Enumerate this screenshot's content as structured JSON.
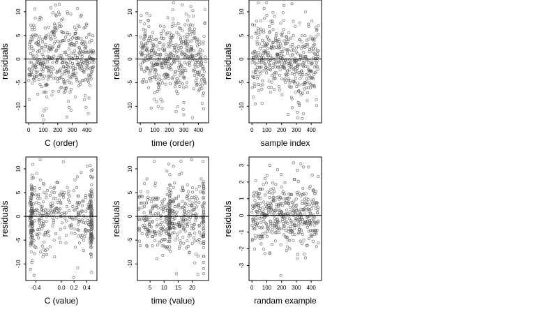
{
  "figure": {
    "background": "#ffffff",
    "point_color": "#555555",
    "axis_color": "#000000"
  },
  "chart_data": [
    {
      "type": "scatter",
      "grid": false,
      "hline": 0,
      "xlabel": "C (order)",
      "ylabel": "residuals",
      "xlim": [
        -20,
        470
      ],
      "ylim": [
        -13.5,
        12.5
      ],
      "xticks": [
        0,
        100,
        200,
        300,
        400
      ],
      "xtick_labels": [
        "0",
        "100",
        "200",
        "300",
        "400"
      ],
      "yticks": [
        -10,
        -5,
        0,
        5,
        10
      ],
      "ytick_labels": [
        "-10",
        "-5",
        "0",
        "5",
        "10"
      ],
      "n_points": 450,
      "x_pattern": "index",
      "y_pattern": "wave",
      "y_sd": 4,
      "seed": 11,
      "points": [
        [
          95,
          -12
        ],
        [
          210,
          11.6
        ],
        [
          290,
          9.5
        ],
        [
          120,
          -10.5
        ],
        [
          395,
          -10.2
        ]
      ]
    },
    {
      "type": "scatter",
      "grid": false,
      "hline": 0,
      "xlabel": "time (order)",
      "ylabel": "residuals",
      "xlim": [
        -20,
        470
      ],
      "ylim": [
        -13.5,
        12.5
      ],
      "xticks": [
        0,
        100,
        200,
        300,
        400
      ],
      "xtick_labels": [
        "0",
        "100",
        "200",
        "300",
        "400"
      ],
      "yticks": [
        -10,
        -5,
        0,
        5,
        10
      ],
      "ytick_labels": [
        "-10",
        "-5",
        "0",
        "5",
        "10"
      ],
      "n_points": 450,
      "x_pattern": "index",
      "y_pattern": "wave",
      "y_sd": 4,
      "seed": 23,
      "points": [
        [
          290,
          11.5
        ],
        [
          360,
          -12.4
        ],
        [
          75,
          -10.4
        ],
        [
          300,
          -11.8
        ]
      ]
    },
    {
      "type": "scatter",
      "grid": false,
      "hline": 0,
      "xlabel": "sample index",
      "ylabel": "residuals",
      "xlim": [
        -20,
        470
      ],
      "ylim": [
        -13.5,
        12.5
      ],
      "xticks": [
        0,
        100,
        200,
        300,
        400
      ],
      "xtick_labels": [
        "0",
        "100",
        "200",
        "300",
        "400"
      ],
      "yticks": [
        -10,
        -5,
        0,
        5,
        10
      ],
      "ytick_labels": [
        "-10",
        "-5",
        "0",
        "5",
        "10"
      ],
      "n_points": 450,
      "x_pattern": "index",
      "y_pattern": "trend",
      "y_sd": 4,
      "seed": 37,
      "points": [
        [
          270,
          11.7
        ],
        [
          340,
          -12.6
        ],
        [
          320,
          -9.8
        ],
        [
          210,
          9.8
        ]
      ]
    },
    {
      "type": "scatter",
      "grid": false,
      "hline": 0,
      "xlabel": "C (value)",
      "ylabel": "residuals",
      "xlim": [
        -0.56,
        0.56
      ],
      "ylim": [
        -13.5,
        12.5
      ],
      "xticks": [
        -0.4,
        0.0,
        0.2,
        0.4
      ],
      "xtick_labels": [
        "-0.4",
        "0.0",
        "0.2",
        "0.4"
      ],
      "yticks": [
        -10,
        -5,
        0,
        5,
        10
      ],
      "ytick_labels": [
        "-10",
        "-5",
        "0",
        "5",
        "10"
      ],
      "n_points": 450,
      "x_pattern": "cvalue",
      "y_pattern": "plain",
      "y_sd": 4,
      "seed": 53,
      "points": [
        [
          0.03,
          11.5
        ],
        [
          -0.43,
          -12.4
        ],
        [
          0.47,
          9.6
        ]
      ]
    },
    {
      "type": "scatter",
      "grid": false,
      "hline": 0,
      "xlabel": "time (value)",
      "ylabel": "residuals",
      "xlim": [
        0.5,
        25.8
      ],
      "ylim": [
        -13.5,
        12.5
      ],
      "xticks": [
        5,
        10,
        15,
        20
      ],
      "xtick_labels": [
        "5",
        "10",
        "15",
        "20"
      ],
      "yticks": [
        -10,
        -5,
        0,
        5,
        10
      ],
      "ytick_labels": [
        "-10",
        "-5",
        "0",
        "5",
        "10"
      ],
      "n_points": 450,
      "x_pattern": "tvalue",
      "y_pattern": "plain",
      "y_sd": 4,
      "seed": 71,
      "points": [
        [
          16,
          11.6
        ],
        [
          22,
          -12.2
        ],
        [
          11,
          9.5
        ]
      ]
    },
    {
      "type": "scatter",
      "grid": false,
      "hline": 0,
      "xlabel": "randam example",
      "ylabel": "residuals",
      "xlim": [
        -20,
        470
      ],
      "ylim": [
        -3.9,
        3.5
      ],
      "xticks": [
        0,
        100,
        200,
        300,
        400
      ],
      "xtick_labels": [
        "0",
        "100",
        "200",
        "300",
        "400"
      ],
      "yticks": [
        -3,
        -2,
        -1,
        0,
        1,
        2,
        3
      ],
      "ytick_labels": [
        "-3",
        "-2",
        "-1",
        "0",
        "1",
        "2",
        "3"
      ],
      "n_points": 450,
      "x_pattern": "index",
      "y_pattern": "plain",
      "y_sd": 1,
      "seed": 97,
      "points": [
        [
          195,
          -3.6
        ],
        [
          280,
          3.15
        ],
        [
          330,
          3.1
        ],
        [
          120,
          3.0
        ]
      ]
    }
  ]
}
